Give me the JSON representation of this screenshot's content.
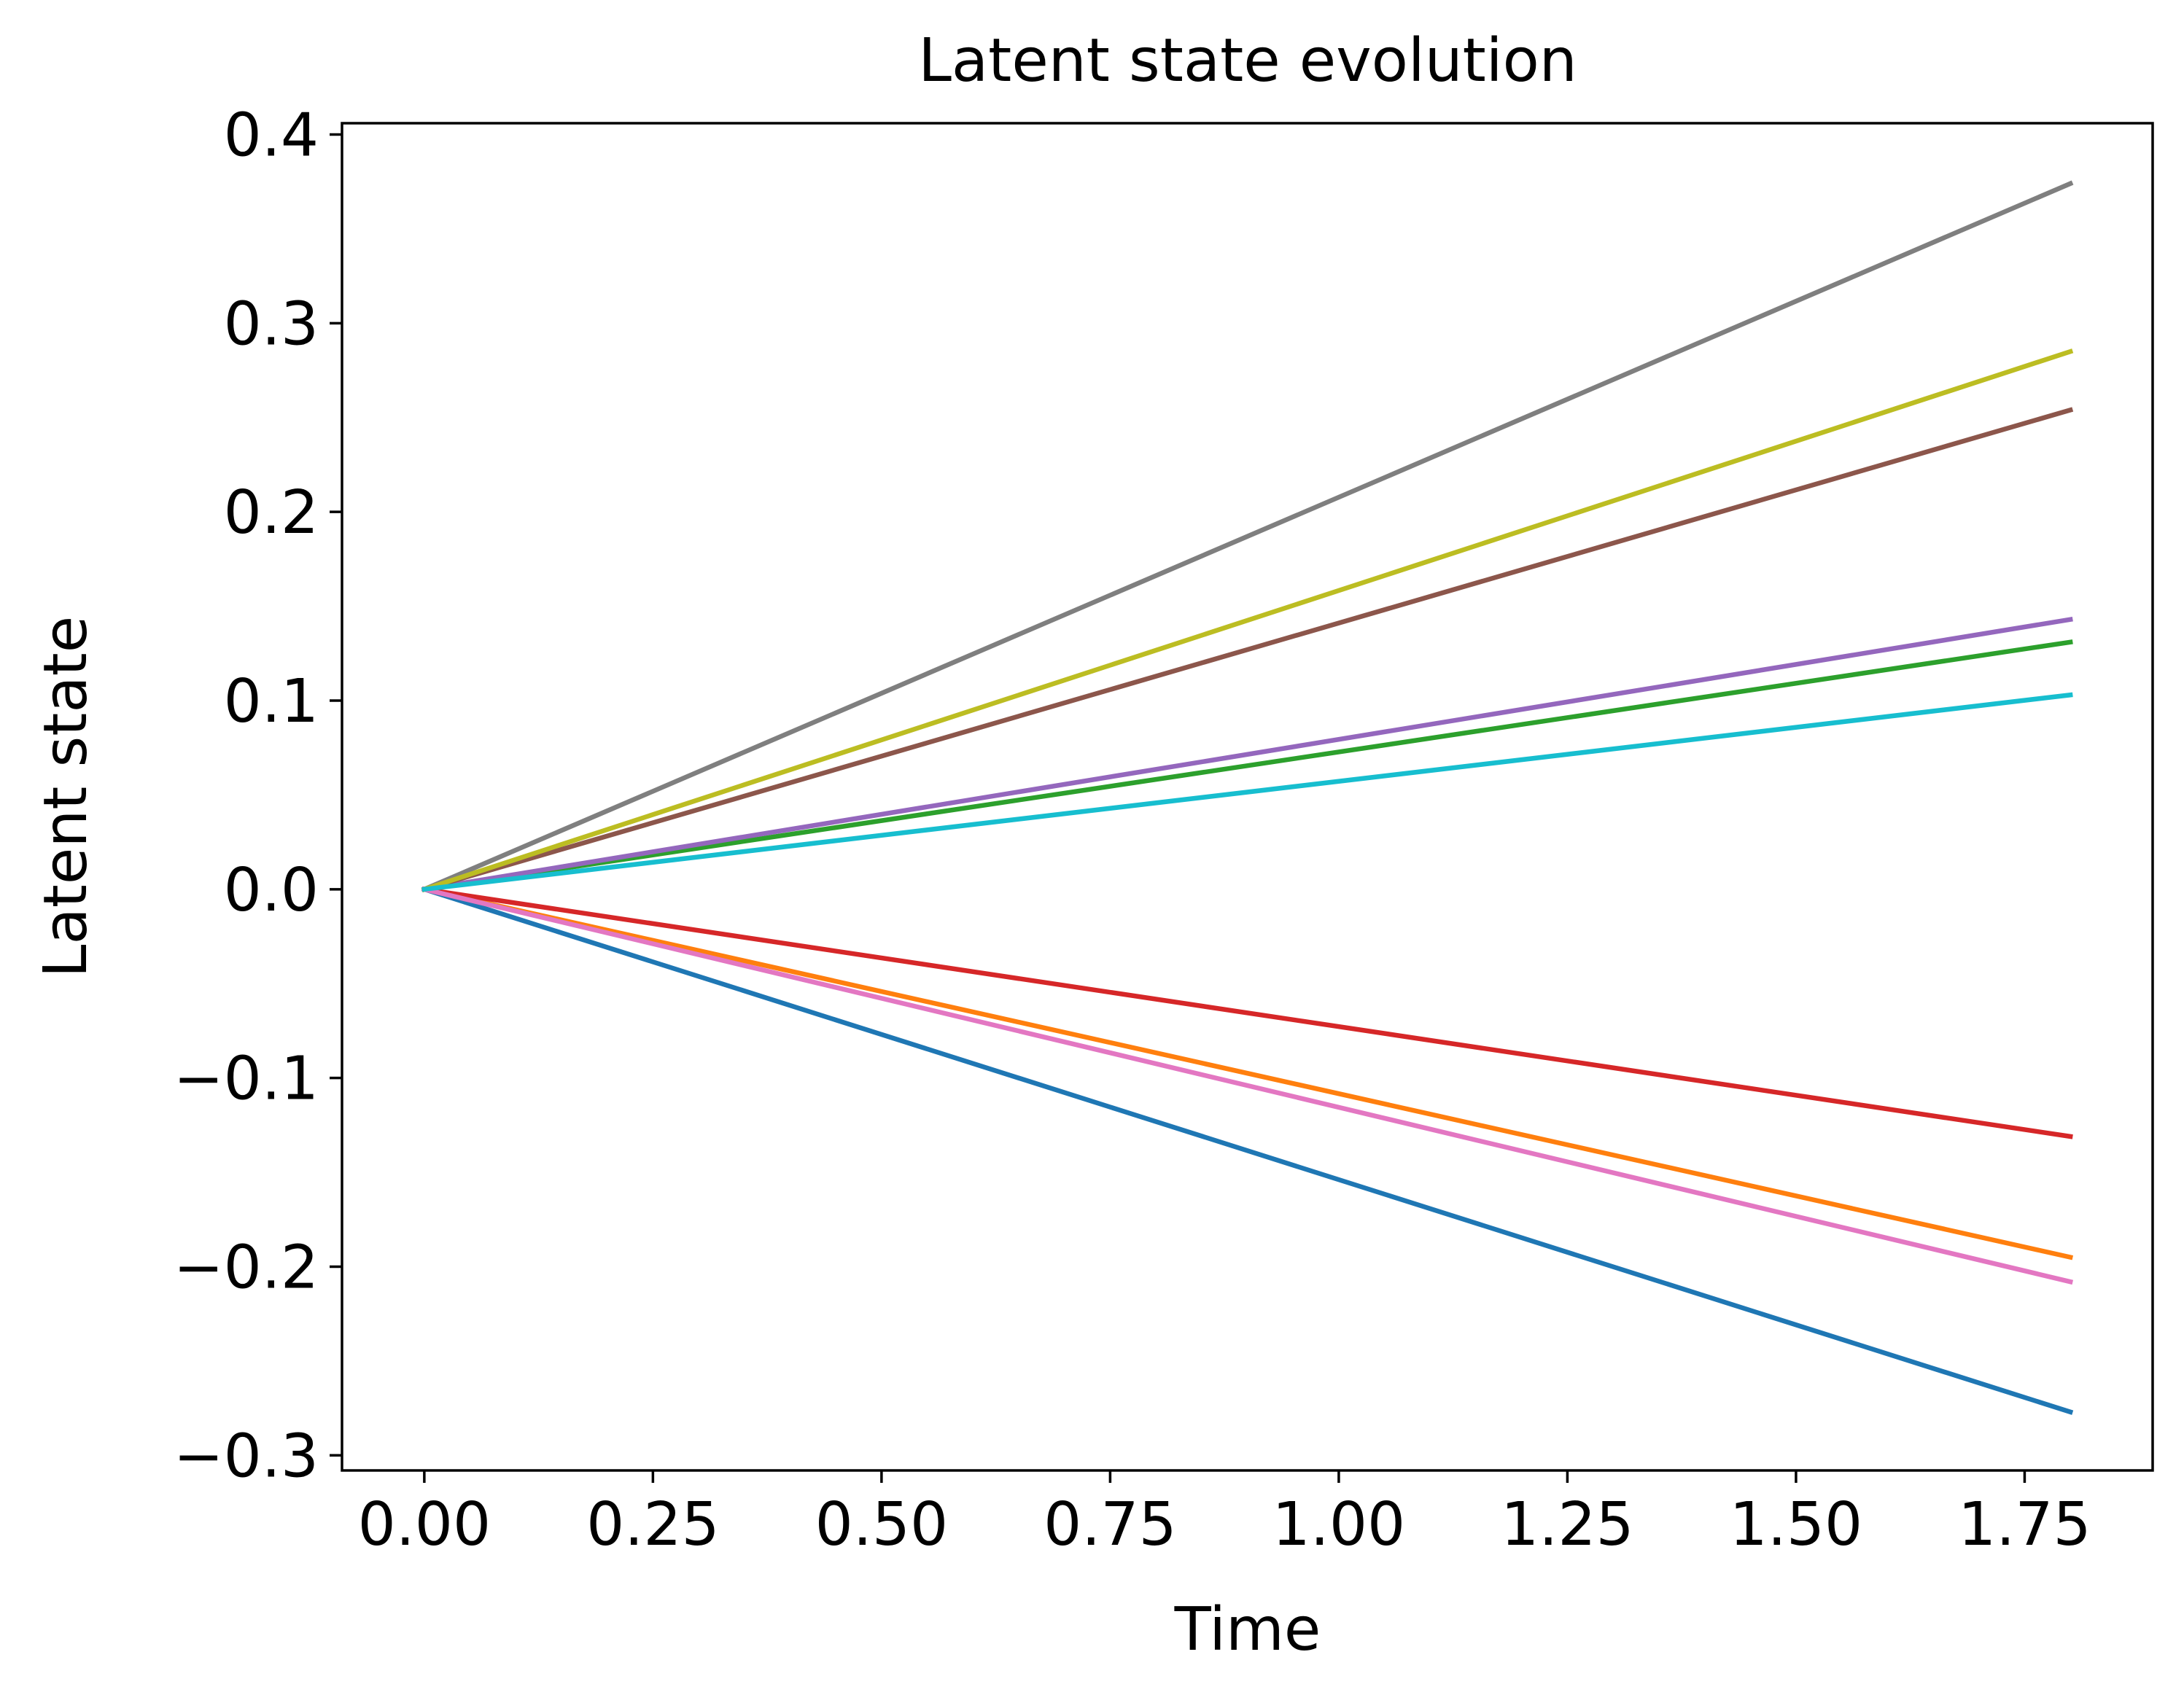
{
  "chart_data": {
    "type": "line",
    "title": "Latent state evolution",
    "xlabel": "Time",
    "ylabel": "Latent state",
    "xlim": [
      -0.09,
      1.89
    ],
    "ylim": [
      -0.308,
      0.406
    ],
    "grid": false,
    "legend": "none",
    "x": [
      0.0,
      1.8
    ],
    "x_ticks": [
      {
        "value": 0.0,
        "label": "0.00"
      },
      {
        "value": 0.25,
        "label": "0.25"
      },
      {
        "value": 0.5,
        "label": "0.50"
      },
      {
        "value": 0.75,
        "label": "0.75"
      },
      {
        "value": 1.0,
        "label": "1.00"
      },
      {
        "value": 1.25,
        "label": "1.25"
      },
      {
        "value": 1.5,
        "label": "1.50"
      },
      {
        "value": 1.75,
        "label": "1.75"
      }
    ],
    "y_ticks": [
      {
        "value": -0.3,
        "label": "−0.3"
      },
      {
        "value": -0.2,
        "label": "−0.2"
      },
      {
        "value": -0.1,
        "label": "−0.1"
      },
      {
        "value": 0.0,
        "label": "0.0"
      },
      {
        "value": 0.1,
        "label": "0.1"
      },
      {
        "value": 0.2,
        "label": "0.2"
      },
      {
        "value": 0.3,
        "label": "0.3"
      },
      {
        "value": 0.4,
        "label": "0.4"
      }
    ],
    "series": [
      {
        "color": "#1f77b4",
        "values": [
          0.0,
          -0.277
        ]
      },
      {
        "color": "#ff7f0e",
        "values": [
          0.0,
          -0.195
        ]
      },
      {
        "color": "#2ca02c",
        "values": [
          0.0,
          0.131
        ]
      },
      {
        "color": "#d62728",
        "values": [
          0.0,
          -0.131
        ]
      },
      {
        "color": "#9467bd",
        "values": [
          0.0,
          0.143
        ]
      },
      {
        "color": "#8c564b",
        "values": [
          0.0,
          0.254
        ]
      },
      {
        "color": "#e377c2",
        "values": [
          0.0,
          -0.208
        ]
      },
      {
        "color": "#7f7f7f",
        "values": [
          0.0,
          0.374
        ]
      },
      {
        "color": "#bcbd22",
        "values": [
          0.0,
          0.285
        ]
      },
      {
        "color": "#17becf",
        "values": [
          0.0,
          0.103
        ]
      }
    ]
  }
}
